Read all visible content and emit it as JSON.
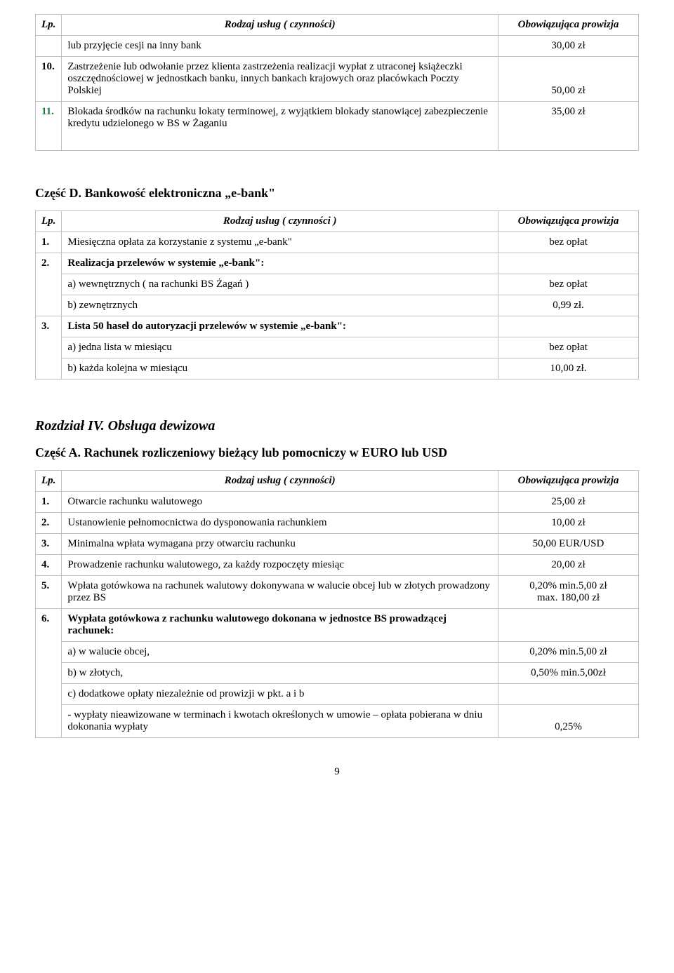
{
  "t1": {
    "h_lp": "Lp.",
    "h_service": "Rodzaj usług ( czynności)",
    "h_fee": "Obowiązująca prowizja",
    "r0_desc": "lub przyjęcie cesji na inny bank",
    "r0_fee": "30,00 zł",
    "r1_lp": "10.",
    "r1_desc": "Zastrzeżenie lub odwołanie przez klienta zastrzeżenia realizacji wypłat z utraconej książeczki oszczędnościowej w jednostkach banku, innych bankach krajowych oraz placówkach Poczty Polskiej",
    "r1_fee": "50,00 zł",
    "r2_lp": "11.",
    "r2_desc": "Blokada środków na rachunku lokaty terminowej, z wyjątkiem blokady stanowiącej zabezpieczenie kredytu udzielonego w BS w Żaganiu",
    "r2_fee": "35,00 zł"
  },
  "secD": "Część D. Bankowość elektroniczna „e-bank\"",
  "t2": {
    "h_lp": "Lp.",
    "h_service": "Rodzaj usług ( czynności )",
    "h_fee": "Obowiązująca prowizja",
    "r1_lp": "1.",
    "r1_desc": "Miesięczna opłata za korzystanie z systemu „e-bank\"",
    "r1_fee": "bez opłat",
    "r2_lp": "2.",
    "r2_desc": "Realizacja przelewów w systemie „e-bank\":",
    "r2a_desc": "a) wewnętrznych ( na rachunki BS Żagań )",
    "r2a_fee": "bez opłat",
    "r2b_desc": "b) zewnętrznych",
    "r2b_fee": "0,99 zł.",
    "r3_lp": "3.",
    "r3_desc": "Lista 50 haseł do autoryzacji przelewów w systemie „e-bank\":",
    "r3a_desc": "a) jedna lista w miesiącu",
    "r3a_fee": "bez opłat",
    "r3b_desc": "b) każda kolejna w miesiącu",
    "r3b_fee": "10,00 zł."
  },
  "chapter": "Rozdział IV. Obsługa dewizowa",
  "secA": "Część A. Rachunek rozliczeniowy bieżący lub pomocniczy w EURO lub USD",
  "t3": {
    "h_lp": "Lp.",
    "h_service": "Rodzaj usług ( czynności)",
    "h_fee": "Obowiązująca prowizja",
    "r1_lp": "1.",
    "r1_desc": "Otwarcie rachunku walutowego",
    "r1_fee": "25,00 zł",
    "r2_lp": "2.",
    "r2_desc": "Ustanowienie pełnomocnictwa do dysponowania rachunkiem",
    "r2_fee": "10,00 zł",
    "r3_lp": "3.",
    "r3_desc": "Minimalna wpłata wymagana przy otwarciu rachunku",
    "r3_fee": "50,00 EUR/USD",
    "r4_lp": "4.",
    "r4_desc": "Prowadzenie rachunku walutowego, za każdy rozpoczęty miesiąc",
    "r4_fee": "20,00 zł",
    "r5_lp": "5.",
    "r5_desc": "Wpłata gotówkowa na rachunek walutowy dokonywana w walucie obcej lub w złotych prowadzony przez BS",
    "r5_fee1": "0,20% min.5,00 zł",
    "r5_fee2": "max. 180,00 zł",
    "r6_lp": "6.",
    "r6_desc": "Wypłata gotówkowa z rachunku walutowego dokonana w jednostce BS prowadzącej rachunek:",
    "r6a_desc": "a) w walucie obcej,",
    "r6a_fee": "0,20% min.5,00 zł",
    "r6b_desc": "b) w złotych,",
    "r6b_fee": "0,50% min.5,00zł",
    "r6c_desc": "c) dodatkowe opłaty niezależnie od prowizji w pkt. a i b",
    "r6d_desc": "- wypłaty nieawizowane w terminach i kwotach określonych w umowie – opłata pobierana w dniu dokonania wypłaty",
    "r6d_fee": "0,25%"
  },
  "pageNum": "9",
  "colors": {
    "border": "#c0c0c0",
    "text": "#000000",
    "bg": "#ffffff",
    "row11_num": "#1a7a3a"
  }
}
